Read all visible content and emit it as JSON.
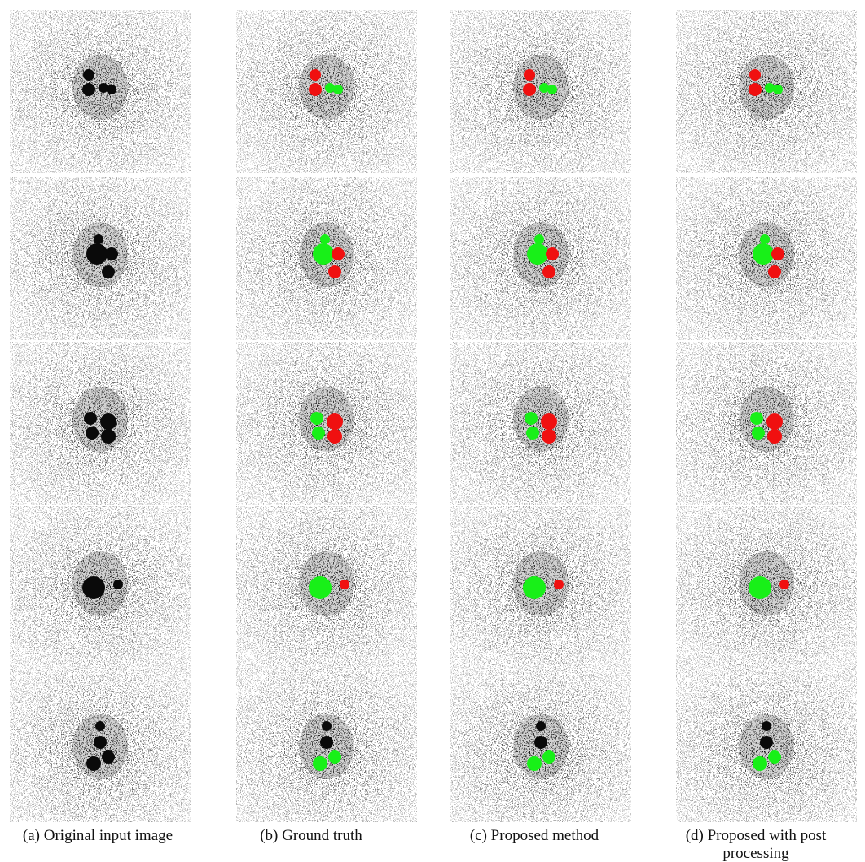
{
  "captions": [
    "(a) Original input image",
    "(b) Ground truth",
    "(c) Proposed method",
    "(d) Proposed with post processing"
  ]
}
